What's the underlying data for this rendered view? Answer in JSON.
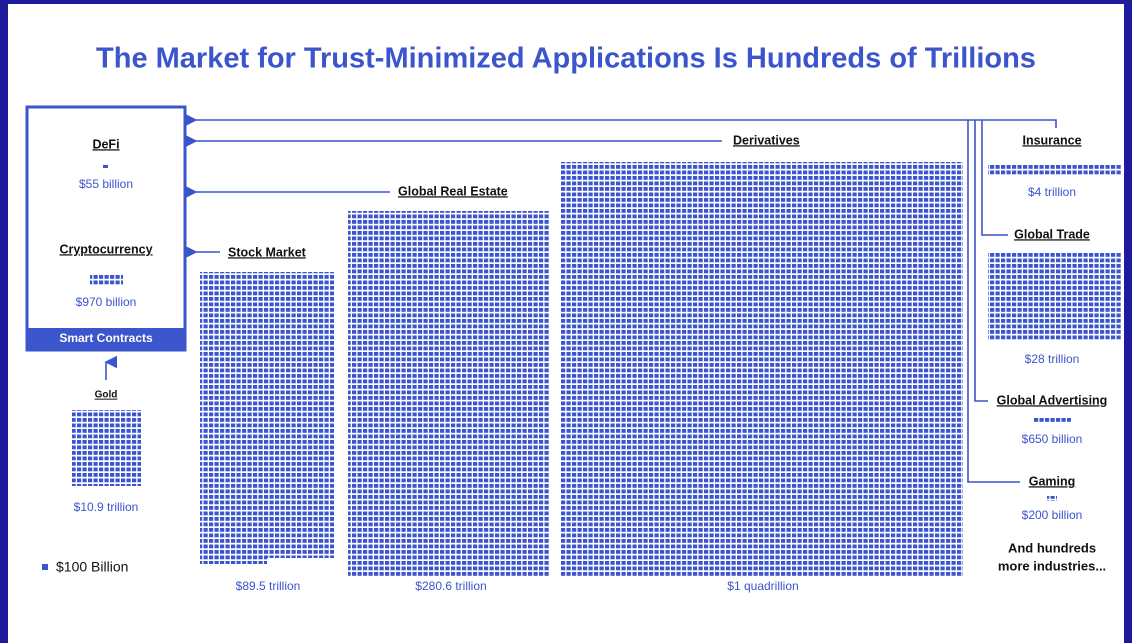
{
  "title": "The Market for Trust-Minimized Applications Is Hundreds of Trillions",
  "smart_contracts": {
    "label": "Smart Contracts",
    "items": [
      {
        "label": "DeFi",
        "value": "$55 billion"
      },
      {
        "label": "Cryptocurrency",
        "value": "$970 billion"
      }
    ]
  },
  "markets": [
    {
      "label": "Gold",
      "value": "$10.9 trillion"
    },
    {
      "label": "Stock Market",
      "value": "$89.5 trillion"
    },
    {
      "label": "Global Real Estate",
      "value": "$280.6 trillion"
    },
    {
      "label": "Derivatives",
      "value": "$1 quadrillion"
    },
    {
      "label": "Insurance",
      "value": "$4 trillion"
    },
    {
      "label": "Global Trade",
      "value": "$28 trillion"
    },
    {
      "label": "Global Advertising",
      "value": "$650 billion"
    },
    {
      "label": "Gaming",
      "value": "$200 billion"
    }
  ],
  "legend": "$100 Billion",
  "more": [
    "And hundreds",
    "more industries..."
  ]
}
